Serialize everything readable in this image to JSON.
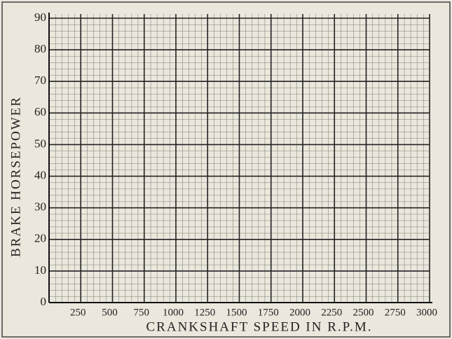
{
  "chart_data": {
    "type": "line",
    "x_label": "CRANKSHAFT SPEED IN R.P.M.",
    "y_label": "BRAKE HORSEPOWER",
    "xlim": [
      0,
      3000
    ],
    "xticks": [
      250,
      500,
      750,
      1000,
      1250,
      1500,
      1750,
      2000,
      2250,
      2500,
      2750,
      3000
    ],
    "ylim": [
      0,
      90
    ],
    "yticks": [
      0,
      10,
      20,
      30,
      40,
      50,
      60,
      70,
      80,
      90
    ],
    "grid": true
  }
}
